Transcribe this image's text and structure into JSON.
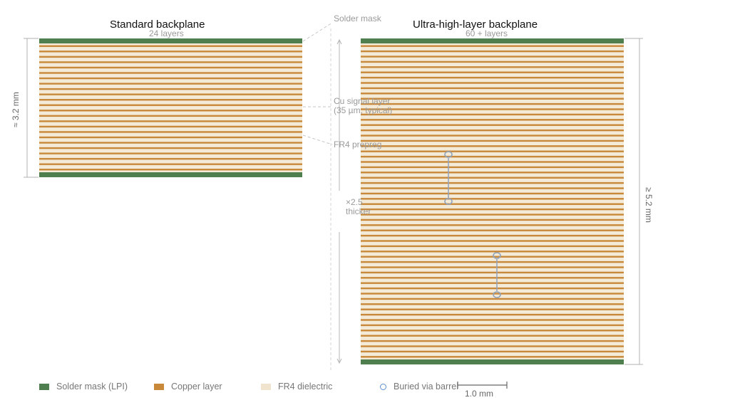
{
  "left_panel": {
    "title": "Standard backplane",
    "subtitle": "24 layers",
    "thickness_label": "≈ 3.2 mm",
    "copper_layers": 24
  },
  "right_panel": {
    "title": "Ultra-high-layer backplane",
    "subtitle": "60 + layers",
    "thickness_label": "≥ 5.2 mm",
    "copper_layers": 60
  },
  "callouts": {
    "solder_mask": "Solder mask",
    "cu_line1": "Cu signal layer",
    "cu_line2": "(35 µm, typical)",
    "fr4": "FR4 prepreg",
    "ratio_line1": "×2.5",
    "ratio_line2": "thicker"
  },
  "legend": {
    "solder_mask": "Solder mask (LPI)",
    "copper": "Copper layer",
    "fr4": "FR4 dielectric",
    "via": "Buried via barrel"
  },
  "scale_bar": {
    "label": "1.0 mm"
  },
  "colors": {
    "solder_mask": "#4f7f4f",
    "copper": "#c9893a",
    "fr4": "#f3ead8",
    "via": "#5a8fd0",
    "guide": "#bdbdbd"
  }
}
